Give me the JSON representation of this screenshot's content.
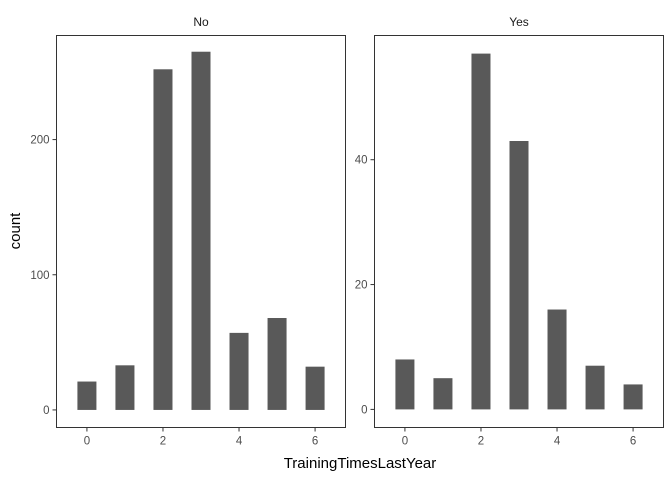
{
  "chart_data": {
    "type": "bar",
    "xlabel": "TrainingTimesLastYear",
    "ylabel": "count",
    "bar_color": "#595959",
    "panel_border_color": "#333333",
    "tick_color": "#333333",
    "grid": false,
    "legend": "none",
    "x": [
      0,
      1,
      2,
      3,
      4,
      5,
      6
    ],
    "x_ticks": [
      "0",
      "2",
      "4",
      "6"
    ],
    "xlim": [
      -0.8,
      6.8
    ],
    "panels": [
      {
        "title": "No",
        "values": [
          21,
          33,
          252,
          265,
          57,
          68,
          32
        ],
        "ylim": [
          -13,
          277
        ],
        "y_ticks": [
          "0",
          "100",
          "200"
        ]
      },
      {
        "title": "Yes",
        "values": [
          8,
          5,
          57,
          43,
          16,
          7,
          4
        ],
        "ylim": [
          -2.9,
          59.9
        ],
        "y_ticks": [
          "0",
          "20",
          "40"
        ]
      }
    ]
  }
}
